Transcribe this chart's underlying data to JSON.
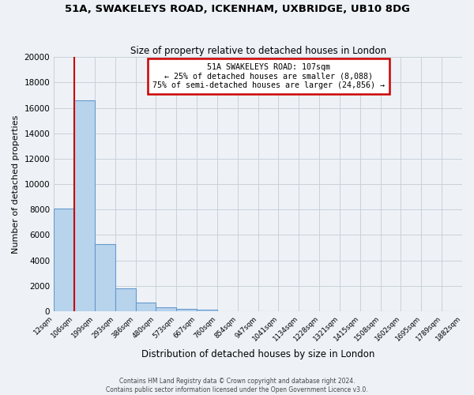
{
  "title": "51A, SWAKELEYS ROAD, ICKENHAM, UXBRIDGE, UB10 8DG",
  "subtitle": "Size of property relative to detached houses in London",
  "xlabel": "Distribution of detached houses by size in London",
  "ylabel": "Number of detached properties",
  "bar_values": [
    8100,
    16600,
    5300,
    1800,
    700,
    300,
    150,
    100,
    0,
    0,
    0,
    0,
    0,
    0,
    0,
    0,
    0,
    0,
    0,
    0
  ],
  "bar_labels": [
    "12sqm",
    "106sqm",
    "199sqm",
    "293sqm",
    "386sqm",
    "480sqm",
    "573sqm",
    "667sqm",
    "760sqm",
    "854sqm",
    "947sqm",
    "1041sqm",
    "1134sqm",
    "1228sqm",
    "1321sqm",
    "1415sqm",
    "1508sqm",
    "1602sqm",
    "1695sqm",
    "1789sqm",
    "1882sqm"
  ],
  "bar_color": "#b8d4ec",
  "bar_edge_color": "#6699cc",
  "annotation_text_line1": "51A SWAKELEYS ROAD: 107sqm",
  "annotation_text_line2": "← 25% of detached houses are smaller (8,088)",
  "annotation_text_line3": "75% of semi-detached houses are larger (24,856) →",
  "annotation_box_facecolor": "#ffffff",
  "annotation_box_edgecolor": "#cc0000",
  "vline_color": "#cc0000",
  "ylim": [
    0,
    20000
  ],
  "yticks": [
    0,
    2000,
    4000,
    6000,
    8000,
    10000,
    12000,
    14000,
    16000,
    18000,
    20000
  ],
  "footer_line1": "Contains HM Land Registry data © Crown copyright and database right 2024.",
  "footer_line2": "Contains public sector information licensed under the Open Government Licence v3.0.",
  "bg_color": "#eef2f7",
  "grid_color": "#c8d0da"
}
